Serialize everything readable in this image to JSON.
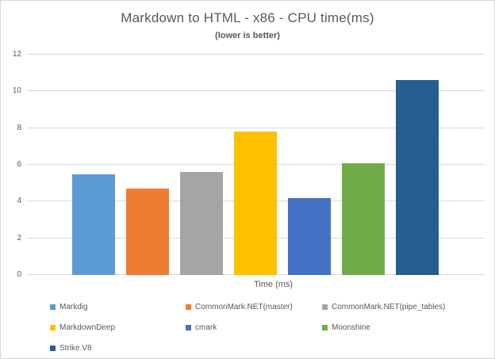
{
  "header": {
    "title": "Markdown to HTML - x86 - CPU time(ms)",
    "subtitle": "(lower is better)"
  },
  "chart_data": {
    "type": "bar",
    "title": "Markdown to HTML - x86 - CPU time(ms)",
    "subtitle": "(lower is better)",
    "categories": [
      "Markdig",
      "CommonMark.NET(master)",
      "CommonMark.NET(pipe_tables)",
      "MarkdownDeep",
      "cmark",
      "Moonshine",
      "Strike.V8"
    ],
    "values": [
      5.5,
      4.7,
      5.6,
      7.8,
      4.2,
      6.1,
      10.6
    ],
    "bar_colors": [
      "#5B9BD5",
      "#ED7D31",
      "#A5A5A5",
      "#FFC000",
      "#4472C4",
      "#70AD47",
      "#255E91"
    ],
    "xlabel": "Time (ms)",
    "ylabel": "",
    "ylim": [
      0,
      12
    ],
    "yticks": [
      0,
      2,
      4,
      6,
      8,
      10,
      12
    ],
    "grid": true,
    "legend_position": "bottom",
    "legend_columns": 3
  },
  "style_colors": {
    "text": "#595959",
    "gridline": "#D9D9D9",
    "frame_border": "#D7D7D7",
    "background": "#FFFFFF"
  }
}
